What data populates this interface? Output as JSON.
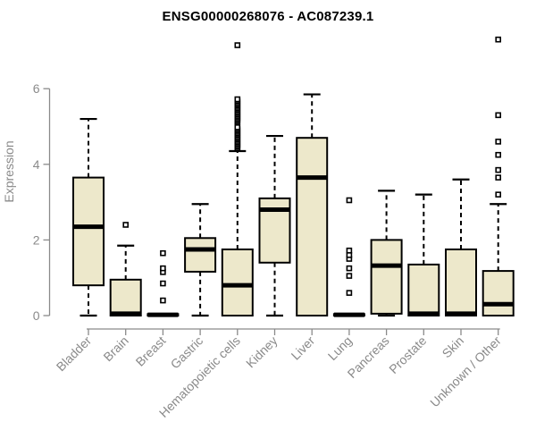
{
  "chart_data": {
    "type": "boxplot",
    "title": "ENSG00000268076 - AC087239.1",
    "ylabel": "Expression",
    "xlabel": "",
    "ylim": [
      0,
      6
    ],
    "yticks": [
      0,
      2,
      4,
      6
    ],
    "grid": false,
    "legend": "none",
    "categories": [
      "Bladder",
      "Brain",
      "Breast",
      "Gastric",
      "Hematopoietic cells",
      "Kidney",
      "Liver",
      "Lung",
      "Pancreas",
      "Prostate",
      "Skin",
      "Unknown / Other"
    ],
    "boxes": [
      {
        "category": "Bladder",
        "whisker_low": 0,
        "q1": 0.8,
        "median": 2.35,
        "q3": 3.65,
        "whisker_high": 5.2,
        "outliers": []
      },
      {
        "category": "Brain",
        "whisker_low": 0,
        "q1": 0,
        "median": 0.05,
        "q3": 0.95,
        "whisker_high": 1.85,
        "outliers": [
          2.4
        ]
      },
      {
        "category": "Breast",
        "whisker_low": 0,
        "q1": 0,
        "median": 0.02,
        "q3": 0.04,
        "whisker_high": 0.04,
        "outliers": [
          0.4,
          0.85,
          1.15,
          1.25,
          1.65
        ]
      },
      {
        "category": "Gastric",
        "whisker_low": 0,
        "q1": 1.16,
        "median": 1.75,
        "q3": 2.05,
        "whisker_high": 2.95,
        "outliers": []
      },
      {
        "category": "Hematopoietic cells",
        "whisker_low": 0,
        "q1": 0,
        "median": 0.8,
        "q3": 1.75,
        "whisker_high": 4.35,
        "outliers": [
          4.42,
          4.46,
          4.5,
          4.54,
          4.58,
          4.62,
          4.66,
          4.7,
          4.74,
          4.78,
          4.82,
          4.86,
          4.9,
          4.94,
          4.98,
          5.12,
          5.16,
          5.2,
          5.24,
          5.28,
          5.32,
          5.36,
          5.4,
          5.44,
          5.48,
          5.52,
          5.56,
          5.6,
          5.64,
          5.68,
          5.72,
          7.15
        ]
      },
      {
        "category": "Kidney",
        "whisker_low": 0,
        "q1": 1.4,
        "median": 2.8,
        "q3": 3.1,
        "whisker_high": 4.75,
        "outliers": []
      },
      {
        "category": "Liver",
        "whisker_low": 0,
        "q1": 0,
        "median": 3.65,
        "q3": 4.7,
        "whisker_high": 5.85,
        "outliers": []
      },
      {
        "category": "Lung",
        "whisker_low": 0,
        "q1": 0,
        "median": 0.02,
        "q3": 0.04,
        "whisker_high": 0.04,
        "outliers": [
          0.6,
          1.05,
          1.25,
          1.5,
          1.6,
          1.72,
          3.05
        ]
      },
      {
        "category": "Pancreas",
        "whisker_low": 0,
        "q1": 0.05,
        "median": 1.32,
        "q3": 2.0,
        "whisker_high": 3.3,
        "outliers": []
      },
      {
        "category": "Prostate",
        "whisker_low": 0,
        "q1": 0,
        "median": 0.05,
        "q3": 1.35,
        "whisker_high": 3.2,
        "outliers": []
      },
      {
        "category": "Skin",
        "whisker_low": 0,
        "q1": 0,
        "median": 0.05,
        "q3": 1.75,
        "whisker_high": 3.6,
        "outliers": []
      },
      {
        "category": "Unknown / Other",
        "whisker_low": 0,
        "q1": 0,
        "median": 0.3,
        "q3": 1.18,
        "whisker_high": 2.95,
        "outliers": [
          3.2,
          3.65,
          3.85,
          4.25,
          4.6,
          5.3,
          7.3
        ]
      }
    ],
    "colors": {
      "box_fill": "#EDE8CB",
      "box_border": "#000000",
      "median": "#000000",
      "whisker": "#000000",
      "outlier_stroke": "#000000",
      "outlier_fill": "#FFFFFF",
      "axis": "#8A8A8A",
      "tick_text": "#8A8A8A",
      "title_text": "#000000",
      "background": "#FFFFFF"
    }
  }
}
